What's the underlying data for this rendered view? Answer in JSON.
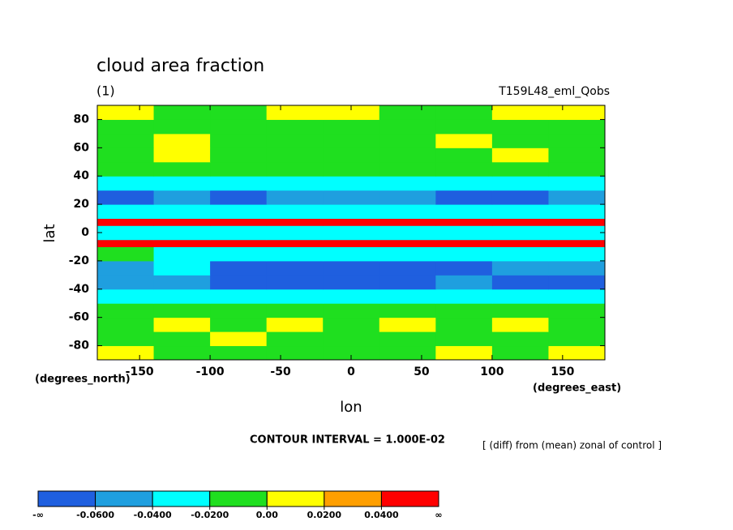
{
  "chart_data": {
    "type": "contour",
    "title": "cloud area fraction",
    "subtitle": "(1)",
    "dataset": "T159L48_eml_Qobs",
    "x_label": "lon",
    "y_label": "lat",
    "x_units": "(degrees_east)",
    "y_units": "(degrees_north)",
    "contour_note": "CONTOUR INTERVAL = 1.000E-02",
    "transform_note": "[ (diff) from (mean) zonal of control ]",
    "xlim": [
      -180,
      180
    ],
    "ylim": [
      -90,
      90
    ],
    "xticks": [
      -150,
      -100,
      -50,
      0,
      50,
      100,
      150
    ],
    "yticks": [
      -80,
      -60,
      -40,
      -20,
      0,
      20,
      40,
      60,
      80
    ],
    "lon_edges": [
      -180,
      -140,
      -100,
      -60,
      -20,
      20,
      60,
      100,
      140,
      180
    ],
    "lat_edges": [
      -90,
      -80,
      -70,
      -60,
      -50,
      -40,
      -30,
      -20,
      -10,
      -5,
      5,
      10,
      20,
      30,
      40,
      50,
      60,
      70,
      80,
      90
    ],
    "z": [
      [
        0.01,
        -0.01,
        -0.01,
        -0.01,
        -0.01,
        -0.01,
        0.01,
        -0.01,
        0.01
      ],
      [
        -0.01,
        -0.01,
        0.01,
        -0.01,
        -0.01,
        -0.01,
        -0.01,
        -0.01,
        -0.01
      ],
      [
        -0.01,
        0.01,
        -0.01,
        0.01,
        -0.01,
        0.01,
        -0.01,
        0.01,
        -0.01
      ],
      [
        -0.01,
        -0.01,
        -0.01,
        -0.01,
        -0.01,
        -0.01,
        -0.01,
        -0.01,
        -0.01
      ],
      [
        -0.03,
        -0.03,
        -0.03,
        -0.03,
        -0.03,
        -0.03,
        -0.03,
        -0.03,
        -0.03
      ],
      [
        -0.05,
        -0.05,
        -0.07,
        -0.07,
        -0.07,
        -0.07,
        -0.05,
        -0.07,
        -0.07
      ],
      [
        -0.05,
        -0.03,
        -0.07,
        -0.07,
        -0.07,
        -0.07,
        -0.07,
        -0.05,
        -0.05
      ],
      [
        -0.01,
        -0.03,
        -0.03,
        -0.03,
        -0.03,
        -0.03,
        -0.03,
        -0.03,
        -0.03
      ],
      [
        0.05,
        0.05,
        0.05,
        0.05,
        0.05,
        0.05,
        0.05,
        0.05,
        0.05
      ],
      [
        -0.03,
        -0.03,
        -0.03,
        -0.03,
        -0.03,
        -0.03,
        -0.03,
        -0.03,
        -0.03
      ],
      [
        0.05,
        0.05,
        0.05,
        0.05,
        0.05,
        0.05,
        0.05,
        0.05,
        0.05
      ],
      [
        -0.03,
        -0.03,
        -0.03,
        -0.03,
        -0.03,
        -0.03,
        -0.03,
        -0.03,
        -0.03
      ],
      [
        -0.07,
        -0.05,
        -0.07,
        -0.05,
        -0.05,
        -0.05,
        -0.07,
        -0.07,
        -0.05
      ],
      [
        -0.03,
        -0.03,
        -0.03,
        -0.03,
        -0.03,
        -0.03,
        -0.03,
        -0.03,
        -0.03
      ],
      [
        -0.01,
        -0.01,
        -0.01,
        -0.01,
        -0.01,
        -0.01,
        -0.01,
        -0.01,
        -0.01
      ],
      [
        -0.01,
        0.01,
        -0.01,
        -0.01,
        -0.01,
        -0.01,
        -0.01,
        0.01,
        -0.01
      ],
      [
        -0.01,
        0.01,
        -0.01,
        -0.01,
        -0.01,
        -0.01,
        0.01,
        -0.01,
        -0.01
      ],
      [
        -0.01,
        -0.01,
        -0.01,
        -0.01,
        -0.01,
        -0.01,
        -0.01,
        -0.01,
        -0.01
      ],
      [
        0.01,
        -0.01,
        -0.01,
        0.01,
        0.01,
        -0.01,
        -0.01,
        0.01,
        0.01
      ]
    ],
    "colors": [
      "#1f5fdf",
      "#1f9fdf",
      "#00ffff",
      "#1fdf1f",
      "#ffff00",
      "#ff9f00",
      "#ff0000"
    ],
    "levels": [
      {
        "value": -0.06,
        "label": "-0.0600"
      },
      {
        "value": -0.04,
        "label": "-0.0400"
      },
      {
        "value": -0.02,
        "label": "-0.0200"
      },
      {
        "value": 0,
        "label": "0.00"
      },
      {
        "value": 0.02,
        "label": "0.0200"
      },
      {
        "value": 0.04,
        "label": "0.0400"
      }
    ],
    "low_label": "-∞",
    "high_label": "∞"
  }
}
